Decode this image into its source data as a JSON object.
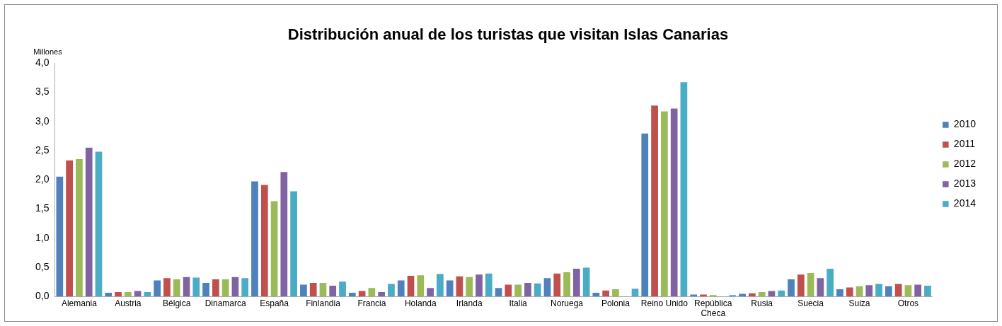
{
  "chart_data": {
    "type": "bar",
    "title": "Distribución anual de los turistas que visitan Islas Canarias",
    "ylabel": "Millones",
    "categories": [
      "Alemania",
      "Austria",
      "Bélgica",
      "Dinamarca",
      "España",
      "Finlandia",
      "Francia",
      "Holanda",
      "Irlanda",
      "Italia",
      "Noruega",
      "Polonia",
      "Reino Unido",
      "República Checa",
      "Rusia",
      "Suecia",
      "Suiza",
      "Otros"
    ],
    "series": [
      {
        "name": "2010",
        "color": "#4f81bd",
        "values": [
          2.06,
          0.07,
          0.28,
          0.24,
          1.98,
          0.21,
          0.07,
          0.28,
          0.28,
          0.15,
          0.32,
          0.07,
          2.8,
          0.04,
          0.05,
          0.3,
          0.13,
          0.18
        ]
      },
      {
        "name": "2011",
        "color": "#c0504d",
        "values": [
          2.34,
          0.08,
          0.32,
          0.3,
          1.92,
          0.24,
          0.1,
          0.36,
          0.35,
          0.21,
          0.4,
          0.11,
          3.28,
          0.04,
          0.06,
          0.38,
          0.16,
          0.22
        ]
      },
      {
        "name": "2012",
        "color": "#9bbb59",
        "values": [
          2.36,
          0.08,
          0.3,
          0.3,
          1.64,
          0.24,
          0.15,
          0.37,
          0.34,
          0.21,
          0.42,
          0.13,
          3.18,
          0.03,
          0.08,
          0.41,
          0.18,
          0.2
        ]
      },
      {
        "name": "2013",
        "color": "#8064a2",
        "values": [
          2.56,
          0.1,
          0.34,
          0.34,
          2.14,
          0.19,
          0.08,
          0.15,
          0.38,
          0.24,
          0.48,
          null,
          3.23,
          null,
          0.1,
          0.32,
          0.2,
          0.21
        ]
      },
      {
        "name": "2014",
        "color": "#4bacc6",
        "values": [
          2.49,
          0.08,
          0.33,
          0.32,
          1.81,
          0.26,
          0.22,
          0.39,
          0.4,
          0.23,
          0.5,
          0.14,
          3.68,
          0.03,
          0.11,
          0.48,
          0.22,
          0.19
        ]
      }
    ],
    "ylim": [
      0,
      4
    ],
    "yticks": [
      {
        "value": 0,
        "label": "0,0"
      },
      {
        "value": 0.5,
        "label": "0,5"
      },
      {
        "value": 1,
        "label": "1,0"
      },
      {
        "value": 1.5,
        "label": "1,5"
      },
      {
        "value": 2,
        "label": "2,0"
      },
      {
        "value": 2.5,
        "label": "2,5"
      },
      {
        "value": 3,
        "label": "3,0"
      },
      {
        "value": 3.5,
        "label": "3,5"
      },
      {
        "value": 4,
        "label": "4,0"
      }
    ],
    "grid": false,
    "legend": "right"
  }
}
